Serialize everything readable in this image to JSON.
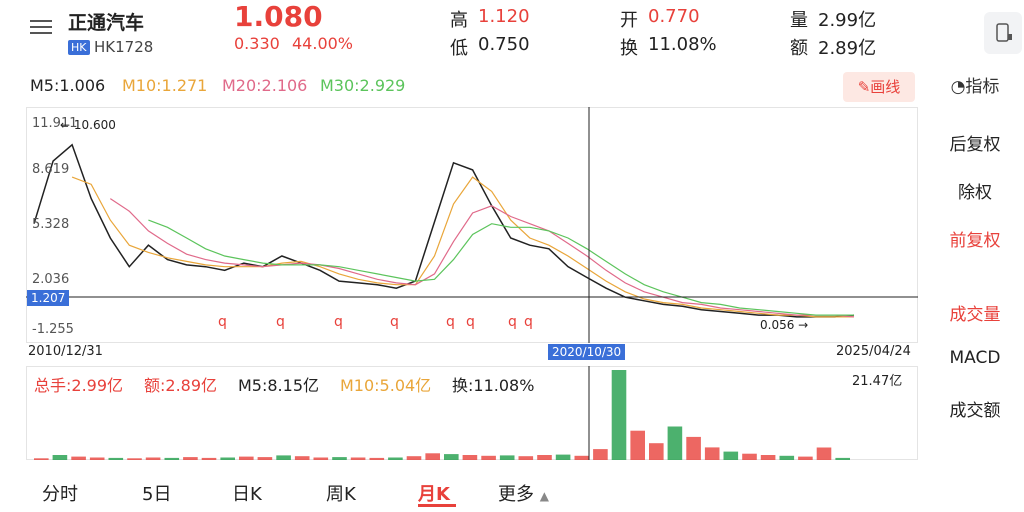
{
  "stock": {
    "name": "正通汽车",
    "market": "HK",
    "code": "HK1728",
    "price": "1.080",
    "change": "0.330",
    "change_pct": "44.00%",
    "high_label": "高",
    "high": "1.120",
    "low_label": "低",
    "low": "0.750",
    "open_label": "开",
    "open": "0.770",
    "turnover_label": "换",
    "turnover": "11.08%",
    "volume_label": "量",
    "volume": "2.99亿",
    "amount_label": "额",
    "amount": "2.89亿"
  },
  "ma_legend": {
    "m5": "M5:1.006",
    "m10": "M10:1.271",
    "m20": "M20:2.106",
    "m30": "M30:2.929",
    "draw_label": "画线"
  },
  "colors": {
    "up": "#e8413b",
    "down": "#1f9e4a",
    "m5": "#222222",
    "m10": "#e9a63a",
    "m20": "#e06a8a",
    "m30": "#5cc45c",
    "accent": "#3a6fd8"
  },
  "y_axis": {
    "t1": "11.911",
    "t2": "8.619",
    "t3": "5.328",
    "t4": "2.036",
    "t5": "1.207",
    "t6": "-1.255"
  },
  "annotations": {
    "max": "10.600",
    "min": "0.056",
    "q": "q"
  },
  "x_axis": {
    "start": "2010/12/31",
    "cursor": "2020/10/30",
    "end": "2025/04/24"
  },
  "volume": {
    "total_hands": "总手:2.99亿",
    "amount": "额:2.89亿",
    "m5": "M5:8.15亿",
    "m10": "M10:5.04亿",
    "turnover": "换:11.08%",
    "max": "21.47亿"
  },
  "right_panel": {
    "indicator": "指标",
    "items": [
      "后复权",
      "除权",
      "前复权",
      "成交量",
      "MACD",
      "成交额"
    ]
  },
  "tabs": [
    "分时",
    "5日",
    "日K",
    "周K",
    "月K",
    "更多"
  ],
  "chart_data": {
    "type": "line",
    "title": "",
    "series": [
      {
        "name": "M5",
        "values": [
          5.4,
          8.9,
          9.8,
          6.8,
          4.6,
          3.0,
          4.2,
          3.4,
          3.1,
          3.0,
          2.8,
          3.2,
          3.0,
          3.6,
          3.2,
          2.8,
          2.2,
          2.1,
          2.0,
          1.8,
          2.2,
          5.5,
          8.8,
          8.4,
          6.4,
          4.6,
          4.2,
          4.0,
          3.0,
          2.4,
          1.8,
          1.3,
          1.1,
          0.9,
          0.8,
          0.6,
          0.5,
          0.4,
          0.3,
          0.3,
          0.2,
          0.2,
          0.2,
          0.3
        ]
      },
      {
        "name": "M10",
        "values": [
          null,
          null,
          8.0,
          7.6,
          5.6,
          4.2,
          3.8,
          3.5,
          3.3,
          3.1,
          3.0,
          3.0,
          3.0,
          3.2,
          3.3,
          3.0,
          2.6,
          2.3,
          2.1,
          2.0,
          2.0,
          3.6,
          6.5,
          8.0,
          7.2,
          5.6,
          4.6,
          4.2,
          3.6,
          2.9,
          2.2,
          1.6,
          1.2,
          1.0,
          0.9,
          0.7,
          0.6,
          0.5,
          0.4,
          0.3,
          0.3,
          0.2,
          0.2,
          0.2
        ]
      },
      {
        "name": "M20",
        "values": [
          null,
          null,
          null,
          null,
          6.8,
          6.1,
          5.0,
          4.3,
          3.7,
          3.4,
          3.2,
          3.1,
          3.0,
          3.1,
          3.2,
          3.1,
          2.9,
          2.6,
          2.3,
          2.1,
          2.0,
          2.6,
          4.4,
          6.0,
          6.4,
          5.8,
          5.4,
          5.0,
          4.3,
          3.6,
          2.8,
          2.1,
          1.6,
          1.3,
          1.0,
          0.9,
          0.7,
          0.6,
          0.5,
          0.4,
          0.3,
          0.3,
          0.3,
          0.2
        ]
      },
      {
        "name": "M30",
        "values": [
          null,
          null,
          null,
          null,
          null,
          null,
          5.6,
          5.2,
          4.6,
          4.0,
          3.6,
          3.4,
          3.2,
          3.1,
          3.1,
          3.1,
          3.0,
          2.8,
          2.6,
          2.4,
          2.2,
          2.3,
          3.4,
          4.8,
          5.4,
          5.2,
          5.2,
          5.0,
          4.6,
          4.0,
          3.3,
          2.6,
          2.0,
          1.6,
          1.3,
          1.0,
          0.9,
          0.7,
          0.6,
          0.5,
          0.4,
          0.3,
          0.3,
          0.3
        ]
      }
    ],
    "ylim": [
      -1.255,
      11.911
    ],
    "volume_values": [
      0.4,
      1.2,
      0.8,
      0.6,
      0.5,
      0.4,
      0.6,
      0.5,
      0.7,
      0.5,
      0.6,
      0.8,
      0.7,
      1.1,
      0.9,
      0.6,
      0.7,
      0.6,
      0.5,
      0.6,
      0.9,
      1.6,
      1.4,
      1.2,
      1.0,
      1.1,
      0.9,
      1.2,
      1.3,
      1.0,
      2.6,
      21.47,
      7.0,
      4.0,
      8.0,
      5.5,
      3.0,
      2.0,
      1.5,
      1.2,
      1.0,
      0.8,
      2.99,
      0.5
    ],
    "volume_ylim": [
      0,
      21.47
    ]
  }
}
